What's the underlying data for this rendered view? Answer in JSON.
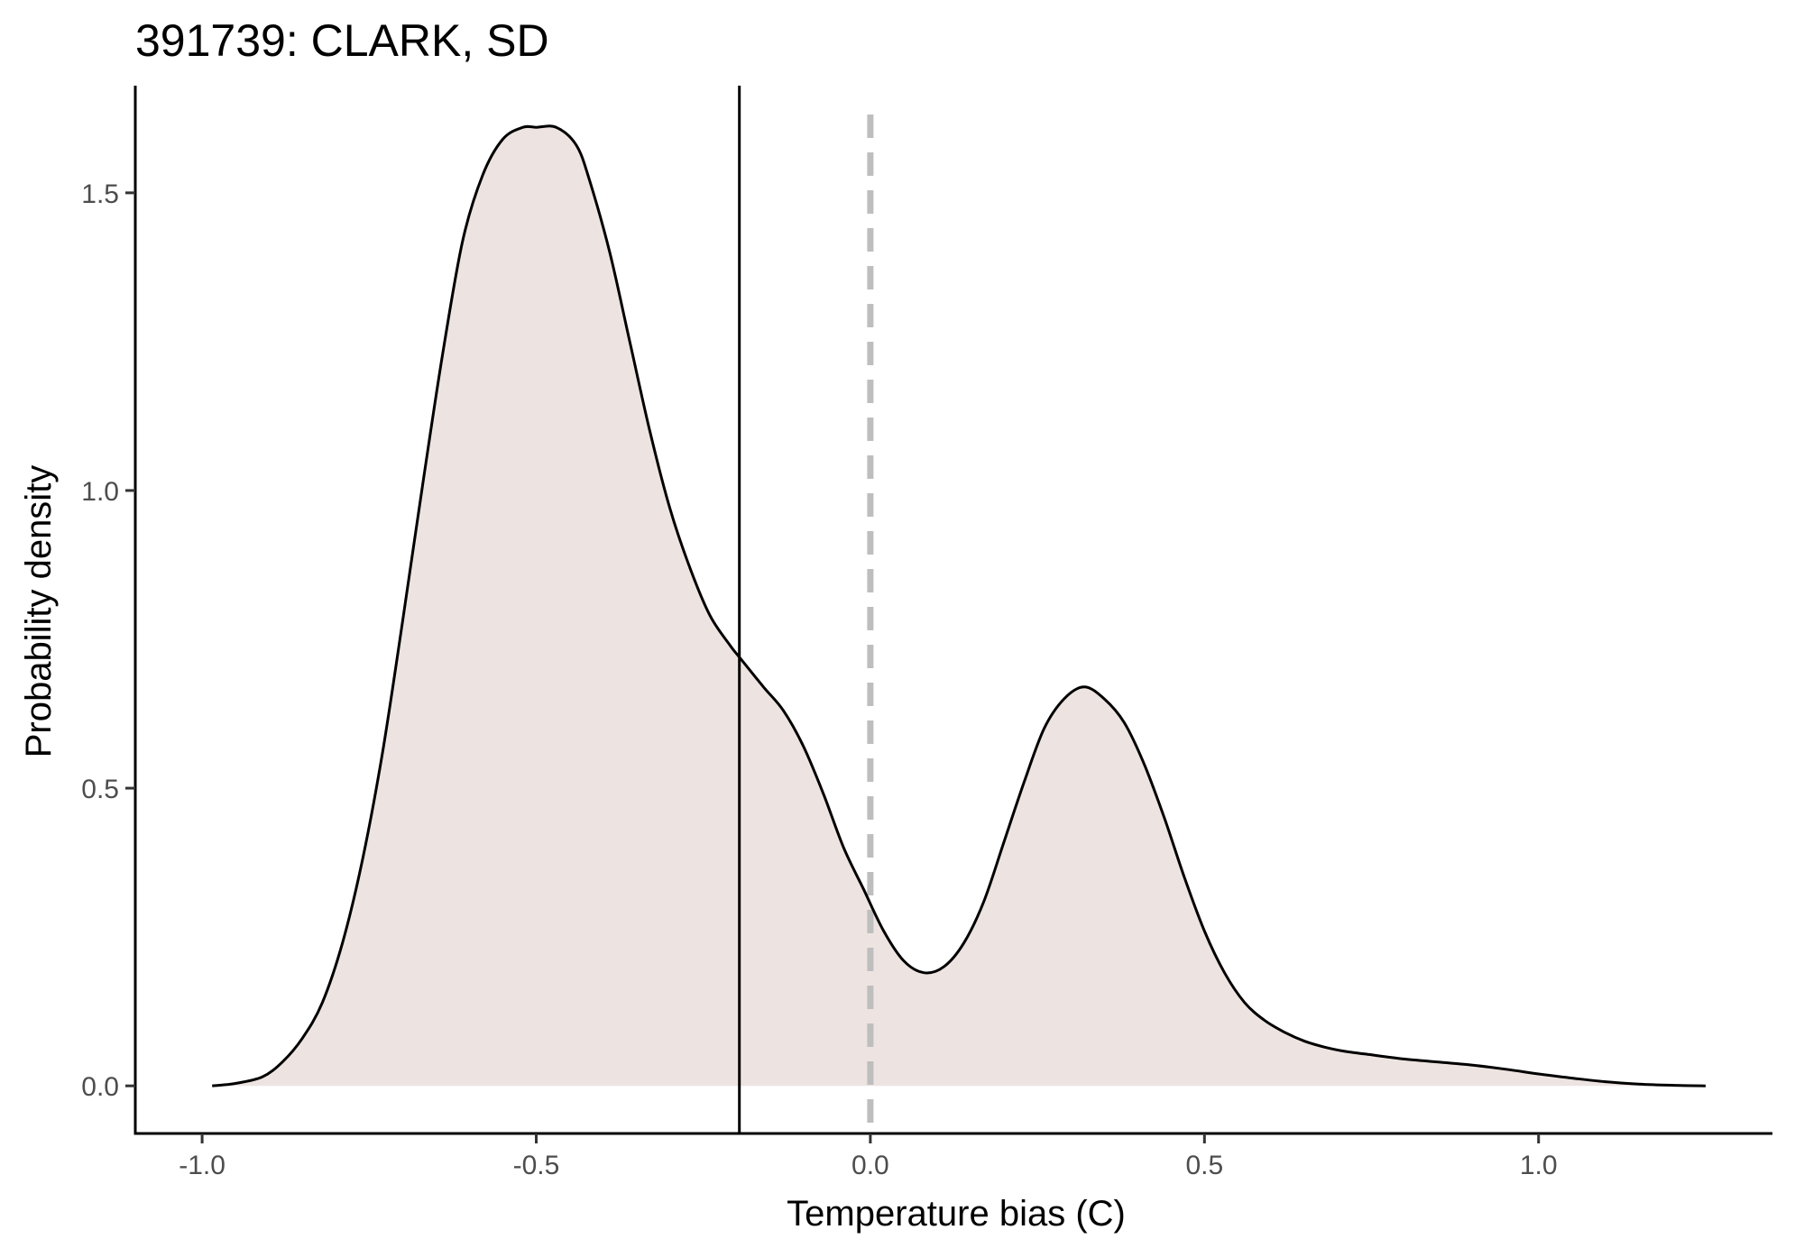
{
  "chart_data": {
    "type": "area",
    "title": "391739: CLARK, SD",
    "xlabel": "Temperature bias (C)",
    "ylabel": "Probability density",
    "xlim": [
      -1.1,
      1.35
    ],
    "ylim": [
      -0.08,
      1.68
    ],
    "x_ticks": [
      -1.0,
      -0.5,
      0.0,
      0.5,
      1.0
    ],
    "x_tick_labels": [
      "-1.0",
      "-0.5",
      "0.0",
      "0.5",
      "1.0"
    ],
    "y_ticks": [
      0.0,
      0.5,
      1.0,
      1.5
    ],
    "y_tick_labels": [
      "0.0",
      "0.5",
      "1.0",
      "1.5"
    ],
    "grid": false,
    "fill_color": "#ede4e1",
    "line_color": "#000000",
    "reference_lines": [
      {
        "x": -0.196,
        "style": "solid",
        "color": "#000000"
      },
      {
        "x": 0.0,
        "style": "dashed",
        "color": "#bebebe"
      }
    ],
    "series": [
      {
        "x": [
          -0.985,
          -0.95,
          -0.91,
          -0.88,
          -0.85,
          -0.82,
          -0.79,
          -0.76,
          -0.73,
          -0.7,
          -0.67,
          -0.64,
          -0.61,
          -0.58,
          -0.55,
          -0.52,
          -0.5,
          -0.47,
          -0.44,
          -0.42,
          -0.39,
          -0.36,
          -0.33,
          -0.3,
          -0.27,
          -0.24,
          -0.21,
          -0.196,
          -0.16,
          -0.13,
          -0.1,
          -0.07,
          -0.04,
          -0.01,
          0.02,
          0.05,
          0.08,
          0.11,
          0.14,
          0.17,
          0.2,
          0.23,
          0.26,
          0.29,
          0.32,
          0.35,
          0.38,
          0.41,
          0.44,
          0.47,
          0.5,
          0.53,
          0.56,
          0.59,
          0.62,
          0.65,
          0.68,
          0.71,
          0.75,
          0.8,
          0.85,
          0.9,
          0.95,
          1.0,
          1.05,
          1.1,
          1.15,
          1.2,
          1.25
        ],
        "y": [
          0.0,
          0.004,
          0.015,
          0.04,
          0.08,
          0.14,
          0.24,
          0.38,
          0.56,
          0.78,
          1.01,
          1.23,
          1.42,
          1.53,
          1.59,
          1.61,
          1.61,
          1.61,
          1.58,
          1.52,
          1.4,
          1.25,
          1.1,
          0.97,
          0.87,
          0.79,
          0.74,
          0.72,
          0.67,
          0.63,
          0.57,
          0.49,
          0.4,
          0.33,
          0.26,
          0.21,
          0.19,
          0.2,
          0.24,
          0.31,
          0.41,
          0.51,
          0.6,
          0.65,
          0.67,
          0.65,
          0.61,
          0.54,
          0.45,
          0.35,
          0.26,
          0.19,
          0.14,
          0.11,
          0.09,
          0.075,
          0.065,
          0.058,
          0.052,
          0.045,
          0.04,
          0.035,
          0.028,
          0.02,
          0.013,
          0.007,
          0.003,
          0.001,
          0.0
        ]
      }
    ]
  }
}
